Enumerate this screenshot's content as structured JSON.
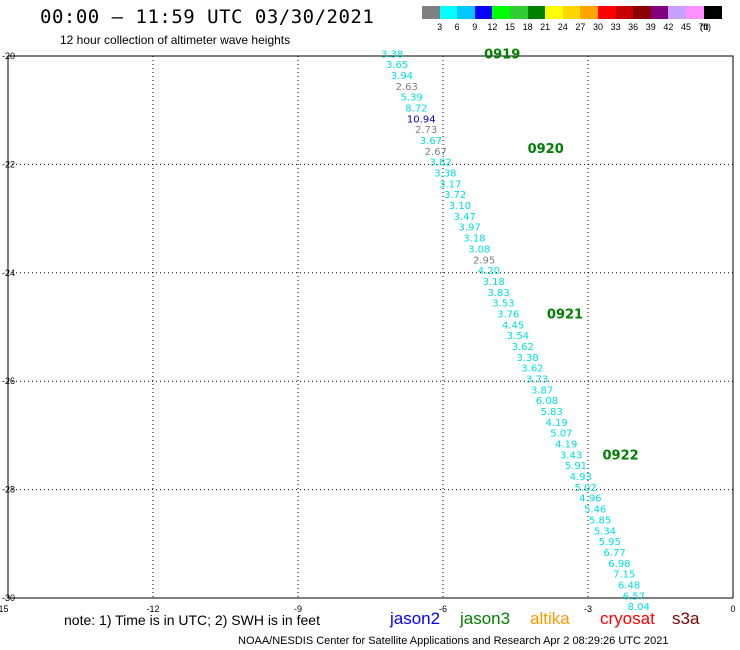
{
  "header": {
    "title": "00:00 – 11:59 UTC 03/30/2021",
    "subtitle": "12 hour collection of altimeter wave heights"
  },
  "color_scale": {
    "labels": [
      "3",
      "6",
      "9",
      "12",
      "15",
      "18",
      "21",
      "24",
      "27",
      "30",
      "33",
      "36",
      "39",
      "42",
      "45",
      "70"
    ],
    "unit": "(ft)",
    "colors": [
      "#808080",
      "#00ffff",
      "#00c8ff",
      "#0000ff",
      "#00ff00",
      "#32cd32",
      "#008000",
      "#ffff00",
      "#ffd700",
      "#ffa500",
      "#ff0000",
      "#c80000",
      "#8b0000",
      "#800080",
      "#c8a0ff",
      "#ff90ff",
      "#000000"
    ]
  },
  "footer": {
    "note": "note: 1) Time is in UTC; 2) SWH is in feet",
    "satellites": [
      {
        "name": "jason2",
        "color": "#0000ff"
      },
      {
        "name": "jason3",
        "color": "#008000"
      },
      {
        "name": "altika",
        "color": "#ff9900"
      },
      {
        "name": "cryosat",
        "color": "#ff0000"
      },
      {
        "name": "s3a",
        "color": "#800000"
      }
    ],
    "credit": "NOAA/NESDIS Center for Satellite Applications and Research    Apr  2 08:29:26 UTC 2021"
  },
  "chart_data": {
    "type": "scatter",
    "title": "00:00 – 11:59 UTC 03/30/2021",
    "subtitle": "12 hour collection of altimeter wave heights",
    "xlim": [
      -15,
      0
    ],
    "ylim": [
      -30,
      -20
    ],
    "x_ticks": [
      "-15",
      "-12",
      "-9",
      "-6",
      "-3",
      "0"
    ],
    "y_ticks": [
      "-20",
      "-22",
      "-24",
      "-26",
      "-28",
      "-30"
    ],
    "grid": true,
    "series": [
      {
        "name": "jason3",
        "color": "#008000"
      }
    ],
    "time_labels": [
      {
        "text": "0919",
        "lon": -5.15,
        "lat": -19.95
      },
      {
        "text": "0920",
        "lon": -4.25,
        "lat": -21.7
      },
      {
        "text": "0921",
        "lon": -3.85,
        "lat": -24.75
      },
      {
        "text": "0922",
        "lon": -2.7,
        "lat": -27.35
      }
    ],
    "points": [
      {
        "lon": -7.05,
        "lat": -19.95,
        "value": "3.38",
        "color": "#00e0e0"
      },
      {
        "lon": -6.95,
        "lat": -20.15,
        "value": "3.65",
        "color": "#00e0e0"
      },
      {
        "lon": -6.85,
        "lat": -20.35,
        "value": "3.94",
        "color": "#00e0e0"
      },
      {
        "lon": -6.75,
        "lat": -20.55,
        "value": "2.63",
        "color": "#808080"
      },
      {
        "lon": -6.65,
        "lat": -20.75,
        "value": "5.39",
        "color": "#00e0e0"
      },
      {
        "lon": -6.55,
        "lat": -20.95,
        "value": "8.72",
        "color": "#00e0e0"
      },
      {
        "lon": -6.45,
        "lat": -21.15,
        "value": "10.94",
        "color": "#0000cc"
      },
      {
        "lon": -6.35,
        "lat": -21.35,
        "value": "2.73",
        "color": "#808080"
      },
      {
        "lon": -6.25,
        "lat": -21.55,
        "value": "3.67",
        "color": "#00e0e0"
      },
      {
        "lon": -6.15,
        "lat": -21.75,
        "value": "2.67",
        "color": "#808080"
      },
      {
        "lon": -6.05,
        "lat": -21.95,
        "value": "3.82",
        "color": "#00e0e0"
      },
      {
        "lon": -5.95,
        "lat": -22.15,
        "value": "3.38",
        "color": "#00e0e0"
      },
      {
        "lon": -5.85,
        "lat": -22.35,
        "value": "3.17",
        "color": "#00e0e0"
      },
      {
        "lon": -5.75,
        "lat": -22.55,
        "value": "3.72",
        "color": "#00e0e0"
      },
      {
        "lon": -5.65,
        "lat": -22.75,
        "value": "3.10",
        "color": "#00e0e0"
      },
      {
        "lon": -5.55,
        "lat": -22.95,
        "value": "3.47",
        "color": "#00e0e0"
      },
      {
        "lon": -5.45,
        "lat": -23.15,
        "value": "3.97",
        "color": "#00e0e0"
      },
      {
        "lon": -5.35,
        "lat": -23.35,
        "value": "3.18",
        "color": "#00e0e0"
      },
      {
        "lon": -5.25,
        "lat": -23.55,
        "value": "3.08",
        "color": "#00e0e0"
      },
      {
        "lon": -5.15,
        "lat": -23.75,
        "value": "2.95",
        "color": "#808080"
      },
      {
        "lon": -5.05,
        "lat": -23.95,
        "value": "4.20",
        "color": "#00e0e0"
      },
      {
        "lon": -4.95,
        "lat": -24.15,
        "value": "3.18",
        "color": "#00e0e0"
      },
      {
        "lon": -4.85,
        "lat": -24.35,
        "value": "3.83",
        "color": "#00e0e0"
      },
      {
        "lon": -4.75,
        "lat": -24.55,
        "value": "3.53",
        "color": "#00e0e0"
      },
      {
        "lon": -4.65,
        "lat": -24.75,
        "value": "3.76",
        "color": "#00e0e0"
      },
      {
        "lon": -4.55,
        "lat": -24.95,
        "value": "4.45",
        "color": "#00e0e0"
      },
      {
        "lon": -4.45,
        "lat": -25.15,
        "value": "3.54",
        "color": "#00e0e0"
      },
      {
        "lon": -4.35,
        "lat": -25.35,
        "value": "3.62",
        "color": "#00e0e0"
      },
      {
        "lon": -4.25,
        "lat": -25.55,
        "value": "3.38",
        "color": "#00e0e0"
      },
      {
        "lon": -4.15,
        "lat": -25.75,
        "value": "3.62",
        "color": "#00e0e0"
      },
      {
        "lon": -4.05,
        "lat": -25.95,
        "value": "3.73",
        "color": "#00e0e0"
      },
      {
        "lon": -3.95,
        "lat": -26.15,
        "value": "3.87",
        "color": "#00e0e0"
      },
      {
        "lon": -3.85,
        "lat": -26.35,
        "value": "6.08",
        "color": "#00e0e0"
      },
      {
        "lon": -3.75,
        "lat": -26.55,
        "value": "5.83",
        "color": "#00e0e0"
      },
      {
        "lon": -3.65,
        "lat": -26.75,
        "value": "4.19",
        "color": "#00e0e0"
      },
      {
        "lon": -3.55,
        "lat": -26.95,
        "value": "5.07",
        "color": "#00e0e0"
      },
      {
        "lon": -3.45,
        "lat": -27.15,
        "value": "4.19",
        "color": "#00e0e0"
      },
      {
        "lon": -3.35,
        "lat": -27.35,
        "value": "3.43",
        "color": "#00e0e0"
      },
      {
        "lon": -3.25,
        "lat": -27.55,
        "value": "5.91",
        "color": "#00e0e0"
      },
      {
        "lon": -3.15,
        "lat": -27.75,
        "value": "4.93",
        "color": "#00e0e0"
      },
      {
        "lon": -3.05,
        "lat": -27.95,
        "value": "5.02",
        "color": "#00e0e0"
      },
      {
        "lon": -2.95,
        "lat": -28.15,
        "value": "4.96",
        "color": "#00e0e0"
      },
      {
        "lon": -2.85,
        "lat": -28.35,
        "value": "5.46",
        "color": "#00e0e0"
      },
      {
        "lon": -2.75,
        "lat": -28.55,
        "value": "5.85",
        "color": "#00e0e0"
      },
      {
        "lon": -2.65,
        "lat": -28.75,
        "value": "5.34",
        "color": "#00e0e0"
      },
      {
        "lon": -2.55,
        "lat": -28.95,
        "value": "5.95",
        "color": "#00e0e0"
      },
      {
        "lon": -2.45,
        "lat": -29.15,
        "value": "6.77",
        "color": "#00e0e0"
      },
      {
        "lon": -2.35,
        "lat": -29.35,
        "value": "6.98",
        "color": "#00e0e0"
      },
      {
        "lon": -2.25,
        "lat": -29.55,
        "value": "7.15",
        "color": "#00e0e0"
      },
      {
        "lon": -2.15,
        "lat": -29.75,
        "value": "6.48",
        "color": "#00e0e0"
      },
      {
        "lon": -2.05,
        "lat": -29.95,
        "value": "6.57",
        "color": "#00e0e0"
      },
      {
        "lon": -1.95,
        "lat": -30.15,
        "value": "8.04",
        "color": "#00e0e0"
      }
    ]
  }
}
